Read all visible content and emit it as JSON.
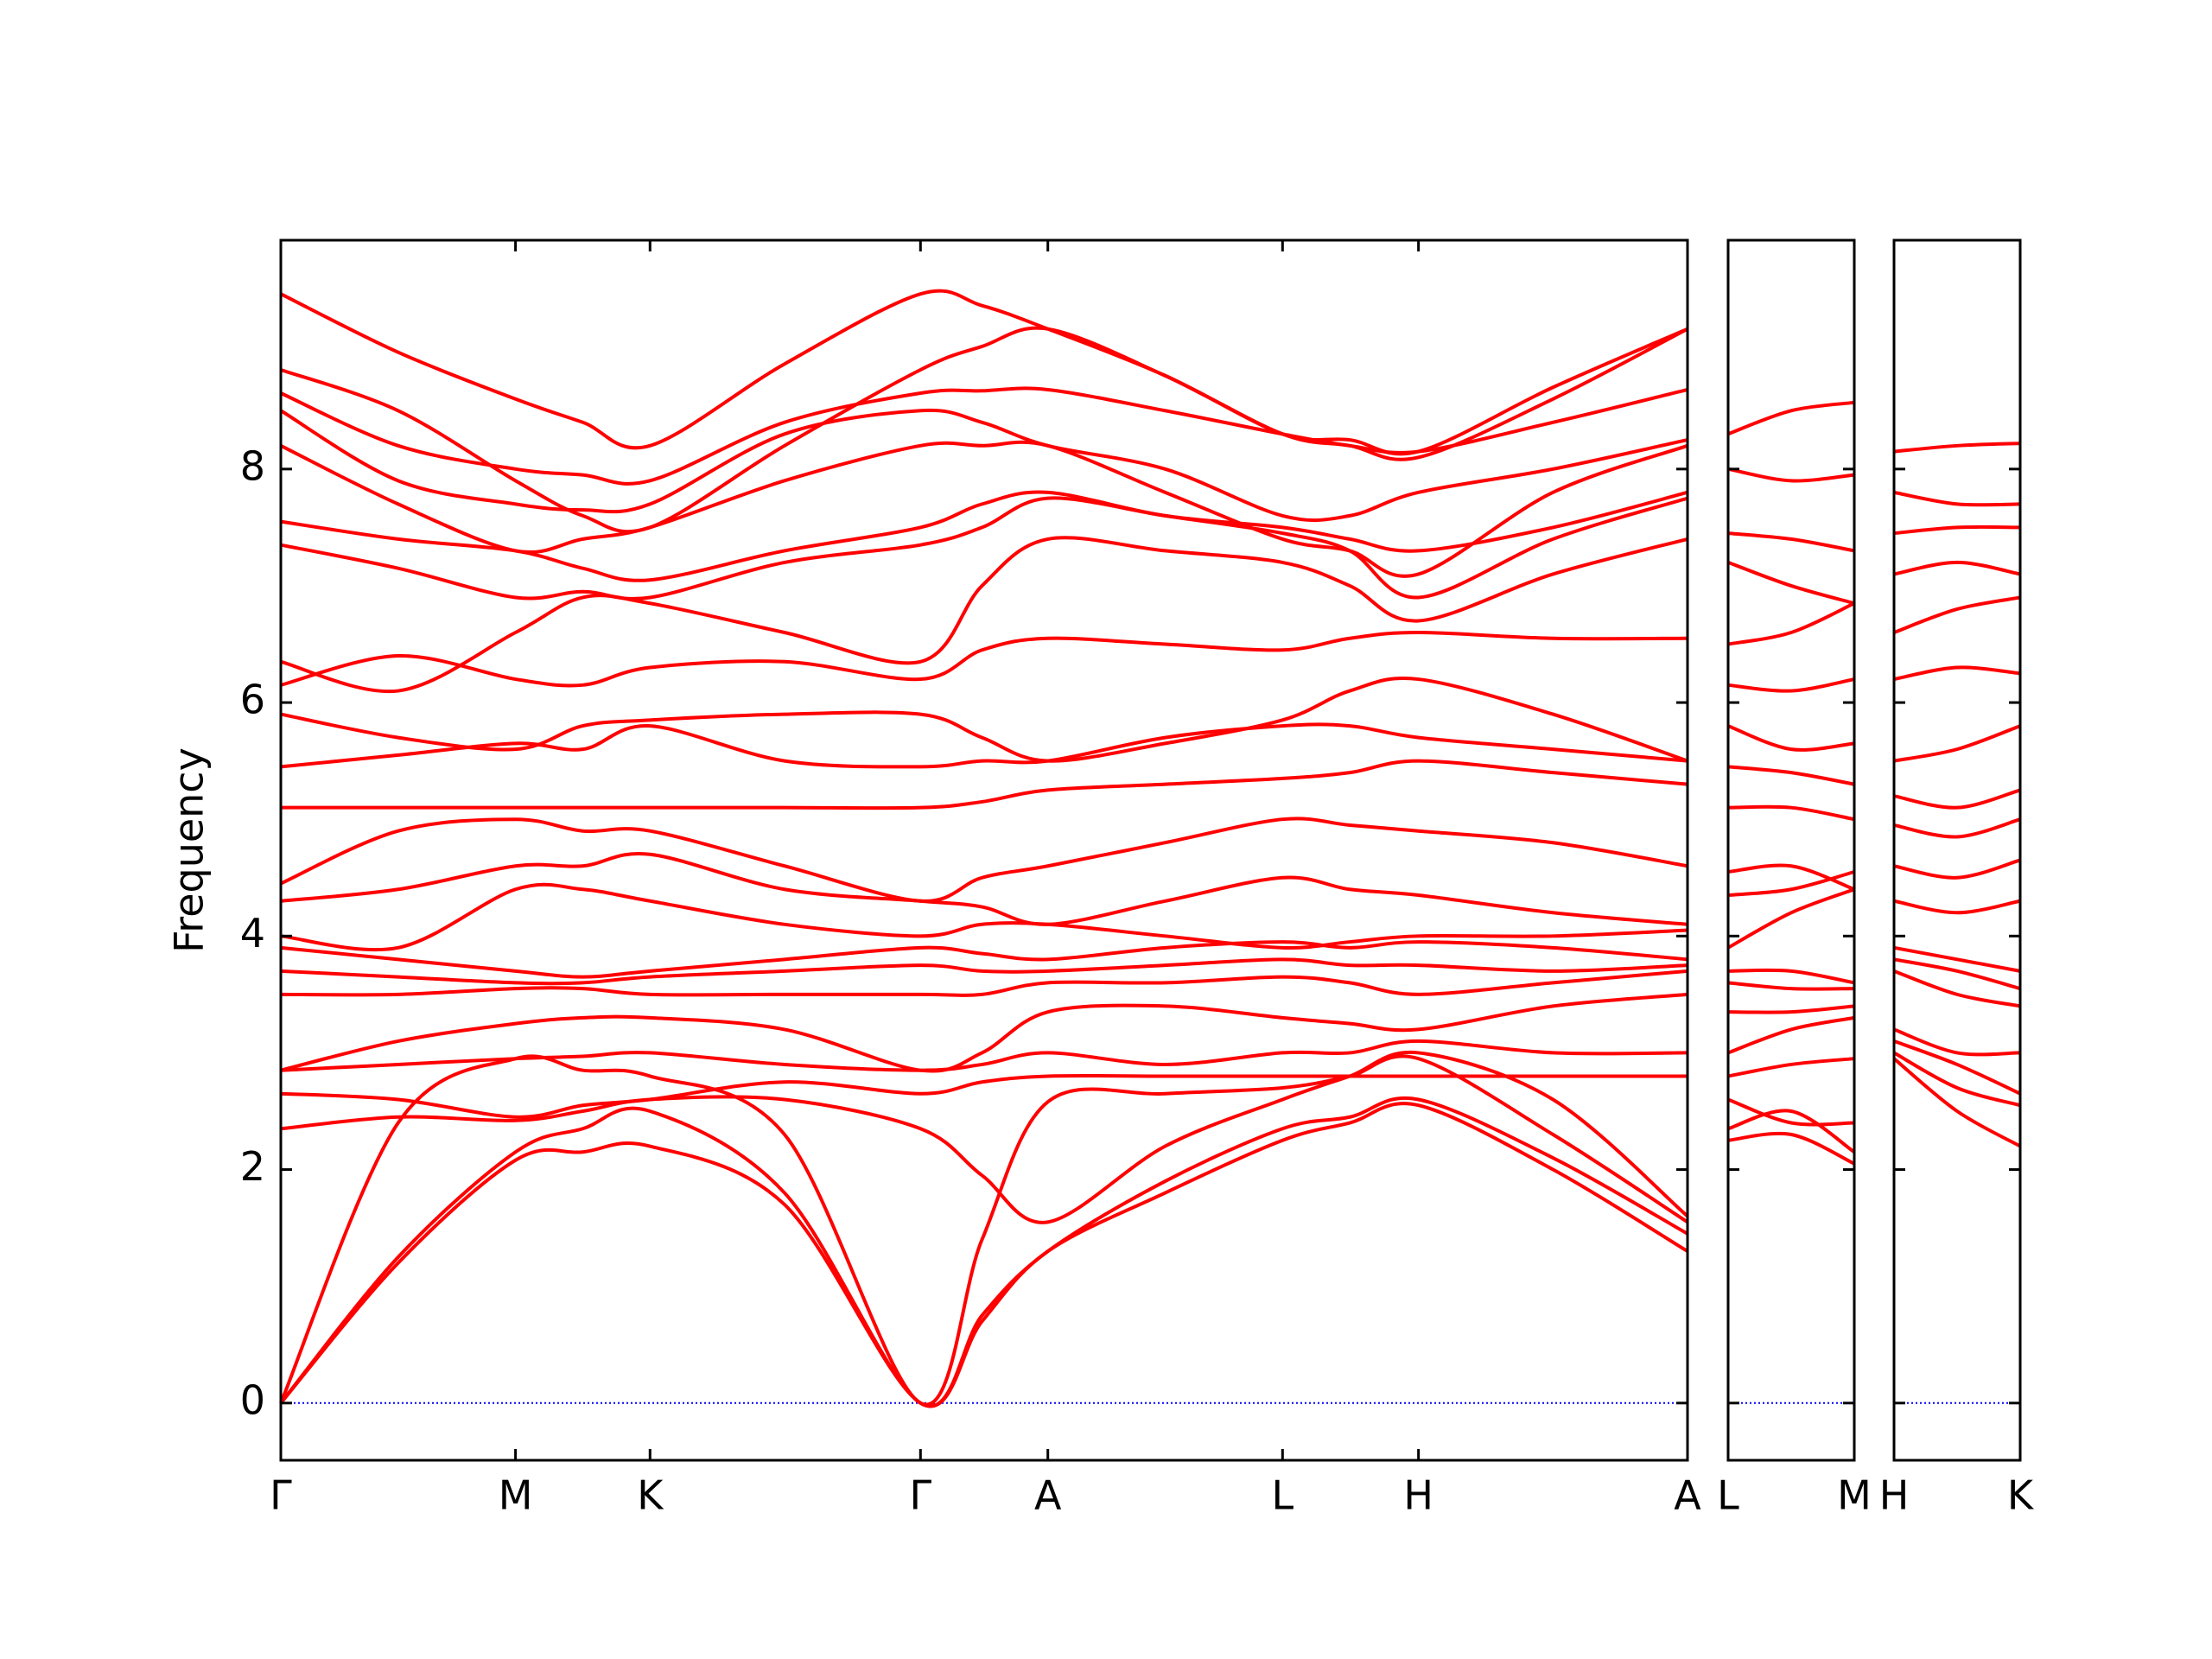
{
  "chart_data": [
    {
      "type": "line",
      "ylabel": "Frequency",
      "color": "#ff0000",
      "show_ytick_labels": true,
      "zero_line": {
        "value": 0,
        "color": "#0000ff"
      },
      "xlim": [
        0,
        9.83
      ],
      "ylim": [
        -0.49,
        9.96
      ],
      "xticks": [
        {
          "value": 0,
          "label": "Γ"
        },
        {
          "value": 1.64,
          "label": "M"
        },
        {
          "value": 2.58,
          "label": "K"
        },
        {
          "value": 4.47,
          "label": "Γ"
        },
        {
          "value": 5.36,
          "label": "A"
        },
        {
          "value": 7.0,
          "label": "L"
        },
        {
          "value": 7.95,
          "label": "H"
        },
        {
          "value": 9.83,
          "label": "A"
        }
      ],
      "yticks": [
        0,
        2,
        4,
        6,
        8
      ],
      "x": [
        0,
        0.82,
        1.64,
        2.11,
        2.58,
        3.52,
        4.47,
        4.9,
        5.36,
        6.18,
        7.0,
        7.47,
        7.95,
        8.89,
        9.83
      ],
      "series": [
        {
          "values": [
            0,
            1.2,
            2.08,
            2.15,
            2.2,
            1.7,
            0,
            0.7,
            1.3,
            1.8,
            2.25,
            2.4,
            2.55,
            2.0,
            1.3
          ]
        },
        {
          "values": [
            0,
            1.25,
            2.15,
            2.35,
            2.5,
            1.8,
            0,
            0.75,
            1.3,
            1.9,
            2.35,
            2.45,
            2.6,
            2.1,
            1.45
          ]
        },
        {
          "values": [
            0,
            2.4,
            2.95,
            2.85,
            2.8,
            2.3,
            0,
            1.4,
            2.58,
            2.65,
            2.7,
            2.8,
            2.95,
            2.3,
            1.55
          ]
        },
        {
          "values": [
            2.35,
            2.45,
            2.42,
            2.5,
            2.6,
            2.6,
            2.35,
            1.95,
            1.55,
            2.2,
            2.6,
            2.8,
            3.0,
            2.6,
            1.6
          ]
        },
        {
          "values": [
            2.65,
            2.6,
            2.45,
            2.55,
            2.6,
            2.75,
            2.65,
            2.75,
            2.8,
            2.8,
            2.8,
            2.8,
            2.8,
            2.8,
            2.8
          ]
        },
        {
          "values": [
            2.85,
            2.9,
            2.95,
            2.97,
            3.0,
            2.9,
            2.85,
            2.9,
            3.0,
            2.9,
            3.0,
            3.0,
            3.1,
            3.0,
            3.0
          ]
        },
        {
          "values": [
            2.85,
            3.1,
            3.25,
            3.3,
            3.3,
            3.2,
            2.85,
            3.0,
            3.35,
            3.4,
            3.3,
            3.25,
            3.2,
            3.4,
            3.5
          ]
        },
        {
          "values": [
            3.5,
            3.5,
            3.55,
            3.55,
            3.5,
            3.5,
            3.5,
            3.5,
            3.6,
            3.6,
            3.65,
            3.6,
            3.5,
            3.6,
            3.7
          ]
        },
        {
          "values": [
            3.7,
            3.65,
            3.6,
            3.6,
            3.65,
            3.7,
            3.75,
            3.7,
            3.7,
            3.75,
            3.8,
            3.75,
            3.75,
            3.7,
            3.75
          ]
        },
        {
          "values": [
            3.9,
            3.8,
            3.7,
            3.65,
            3.7,
            3.8,
            3.9,
            3.85,
            3.8,
            3.9,
            3.95,
            3.9,
            3.95,
            3.9,
            3.8
          ]
        },
        {
          "values": [
            4.0,
            3.9,
            4.4,
            4.4,
            4.3,
            4.1,
            4.0,
            4.1,
            4.1,
            4.0,
            3.9,
            3.95,
            4.0,
            4.0,
            4.05
          ]
        },
        {
          "values": [
            4.3,
            4.4,
            4.6,
            4.6,
            4.7,
            4.4,
            4.3,
            4.25,
            4.1,
            4.3,
            4.5,
            4.4,
            4.35,
            4.2,
            4.1
          ]
        },
        {
          "values": [
            4.45,
            4.9,
            5.0,
            4.9,
            4.9,
            4.6,
            4.3,
            4.5,
            4.6,
            4.8,
            5.0,
            4.95,
            4.9,
            4.8,
            4.6
          ]
        },
        {
          "values": [
            5.1,
            5.1,
            5.1,
            5.1,
            5.1,
            5.1,
            5.1,
            5.15,
            5.25,
            5.3,
            5.35,
            5.4,
            5.5,
            5.4,
            5.3
          ]
        },
        {
          "values": [
            5.45,
            5.55,
            5.65,
            5.6,
            5.8,
            5.5,
            5.45,
            5.5,
            5.5,
            5.7,
            5.8,
            5.8,
            5.7,
            5.6,
            5.5
          ]
        },
        {
          "values": [
            5.9,
            5.7,
            5.6,
            5.8,
            5.85,
            5.9,
            5.9,
            5.7,
            5.5,
            5.65,
            5.85,
            6.1,
            6.2,
            5.9,
            5.5
          ]
        },
        {
          "values": [
            6.15,
            6.4,
            6.2,
            6.15,
            6.3,
            6.35,
            6.2,
            6.45,
            6.55,
            6.5,
            6.45,
            6.55,
            6.6,
            6.55,
            6.55
          ]
        },
        {
          "values": [
            6.35,
            6.1,
            6.6,
            6.9,
            6.85,
            6.6,
            6.35,
            7.0,
            7.4,
            7.3,
            7.2,
            7.0,
            6.7,
            7.1,
            7.4
          ]
        },
        {
          "values": [
            7.35,
            7.15,
            6.9,
            6.95,
            6.9,
            7.2,
            7.35,
            7.5,
            7.75,
            7.6,
            7.45,
            7.3,
            6.9,
            7.4,
            7.75
          ]
        },
        {
          "values": [
            7.55,
            7.4,
            7.3,
            7.15,
            7.05,
            7.3,
            7.5,
            7.7,
            7.8,
            7.6,
            7.5,
            7.4,
            7.3,
            7.5,
            7.8
          ]
        },
        {
          "values": [
            8.2,
            7.7,
            7.3,
            7.4,
            7.5,
            7.9,
            8.2,
            8.2,
            8.2,
            7.8,
            7.4,
            7.3,
            7.1,
            7.8,
            8.2
          ]
        },
        {
          "values": [
            8.5,
            7.9,
            7.7,
            7.65,
            7.7,
            8.3,
            8.5,
            8.4,
            8.2,
            8.0,
            7.6,
            7.6,
            7.8,
            8.0,
            8.25
          ]
        },
        {
          "values": [
            8.65,
            8.2,
            8.0,
            7.95,
            7.9,
            8.4,
            8.65,
            8.67,
            8.68,
            8.5,
            8.3,
            8.2,
            8.15,
            8.4,
            8.68
          ]
        },
        {
          "values": [
            8.85,
            8.5,
            7.9,
            7.6,
            7.5,
            8.2,
            8.85,
            9.05,
            9.2,
            8.8,
            8.3,
            8.2,
            8.1,
            8.6,
            9.2
          ]
        },
        {
          "values": [
            9.5,
            9.0,
            8.6,
            8.4,
            8.2,
            8.9,
            9.5,
            9.4,
            9.2,
            8.8,
            8.3,
            8.25,
            8.15,
            8.7,
            9.2
          ]
        }
      ]
    },
    {
      "type": "line",
      "color": "#ff0000",
      "show_ytick_labels": false,
      "zero_line": {
        "value": 0,
        "color": "#0000ff"
      },
      "xlim": [
        0,
        0.88
      ],
      "ylim": [
        -0.49,
        9.96
      ],
      "xticks": [
        {
          "value": 0,
          "label": "L"
        },
        {
          "value": 0.88,
          "label": "M"
        }
      ],
      "yticks": [
        0,
        2,
        4,
        6,
        8
      ],
      "x": [
        0,
        0.44,
        0.88
      ],
      "series": [
        {
          "values": [
            2.25,
            2.3,
            2.05
          ]
        },
        {
          "values": [
            2.35,
            2.5,
            2.15
          ]
        },
        {
          "values": [
            2.6,
            2.4,
            2.4
          ]
        },
        {
          "values": [
            2.8,
            2.9,
            2.95
          ]
        },
        {
          "values": [
            3.0,
            3.2,
            3.3
          ]
        },
        {
          "values": [
            3.35,
            3.35,
            3.4
          ]
        },
        {
          "values": [
            3.6,
            3.55,
            3.55
          ]
        },
        {
          "values": [
            3.7,
            3.7,
            3.6
          ]
        },
        {
          "values": [
            3.9,
            4.2,
            4.4
          ]
        },
        {
          "values": [
            4.35,
            4.4,
            4.55
          ]
        },
        {
          "values": [
            4.55,
            4.6,
            4.4
          ]
        },
        {
          "values": [
            5.1,
            5.1,
            5.0
          ]
        },
        {
          "values": [
            5.45,
            5.4,
            5.3
          ]
        },
        {
          "values": [
            5.8,
            5.6,
            5.65
          ]
        },
        {
          "values": [
            6.15,
            6.1,
            6.2
          ]
        },
        {
          "values": [
            6.5,
            6.6,
            6.85
          ]
        },
        {
          "values": [
            7.2,
            7.0,
            6.85
          ]
        },
        {
          "values": [
            7.45,
            7.4,
            7.3
          ]
        },
        {
          "values": [
            8.0,
            7.9,
            7.95
          ]
        },
        {
          "values": [
            8.3,
            8.5,
            8.57
          ]
        }
      ]
    },
    {
      "type": "line",
      "color": "#ff0000",
      "show_ytick_labels": false,
      "zero_line": {
        "value": 0,
        "color": "#0000ff"
      },
      "xlim": [
        0,
        0.88
      ],
      "ylim": [
        -0.49,
        9.96
      ],
      "xticks": [
        {
          "value": 0,
          "label": "H"
        },
        {
          "value": 0.88,
          "label": "K"
        }
      ],
      "yticks": [
        0,
        2,
        4,
        6,
        8
      ],
      "x": [
        0,
        0.44,
        0.88
      ],
      "series": [
        {
          "values": [
            2.95,
            2.5,
            2.2
          ]
        },
        {
          "values": [
            3.0,
            2.7,
            2.55
          ]
        },
        {
          "values": [
            3.1,
            2.9,
            2.65
          ]
        },
        {
          "values": [
            3.2,
            3.0,
            3.0
          ]
        },
        {
          "values": [
            3.7,
            3.5,
            3.4
          ]
        },
        {
          "values": [
            3.8,
            3.7,
            3.55
          ]
        },
        {
          "values": [
            3.9,
            3.8,
            3.7
          ]
        },
        {
          "values": [
            4.3,
            4.2,
            4.3
          ]
        },
        {
          "values": [
            4.6,
            4.5,
            4.65
          ]
        },
        {
          "values": [
            4.95,
            4.85,
            5.0
          ]
        },
        {
          "values": [
            5.2,
            5.1,
            5.25
          ]
        },
        {
          "values": [
            5.5,
            5.6,
            5.8
          ]
        },
        {
          "values": [
            6.2,
            6.3,
            6.25
          ]
        },
        {
          "values": [
            6.6,
            6.8,
            6.9
          ]
        },
        {
          "values": [
            7.1,
            7.2,
            7.1
          ]
        },
        {
          "values": [
            7.45,
            7.5,
            7.5
          ]
        },
        {
          "values": [
            7.8,
            7.7,
            7.7
          ]
        },
        {
          "values": [
            8.15,
            8.2,
            8.22
          ]
        }
      ]
    }
  ]
}
